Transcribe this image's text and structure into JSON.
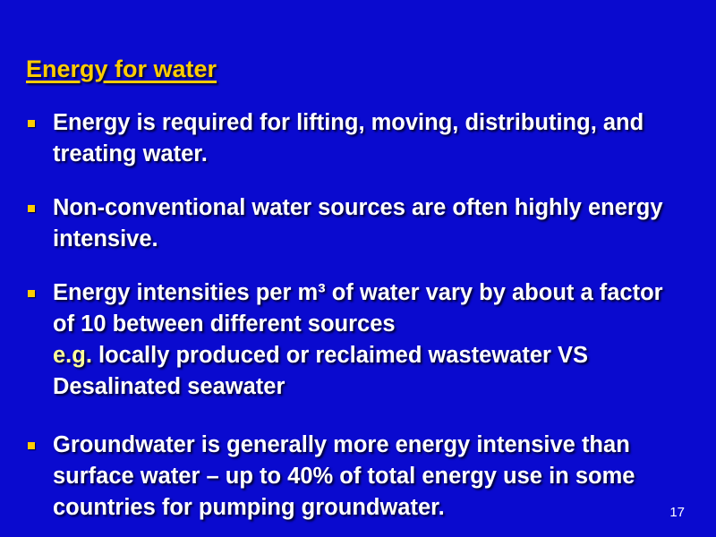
{
  "title": "Energy for water",
  "bullets": [
    {
      "text": "Energy is required for lifting, moving, distributing, and treating water."
    },
    {
      "text": "Non-conventional water sources are often highly energy intensive."
    },
    {
      "text": "Energy intensities  per m³ of water vary by about a factor of 10 between different sources",
      "eg": "e.g.",
      "text2": " locally produced or reclaimed wastewater VS Desalinated seawater"
    },
    {
      "text": "Groundwater is generally more energy intensive than surface water – up to 40% of total energy use in some countries for pumping groundwater."
    }
  ],
  "page_number": "17",
  "colors": {
    "background": "#0A0ACF",
    "title": "#FFCC00",
    "bullet": "#FFCC00",
    "highlight": "#FFFF99"
  }
}
